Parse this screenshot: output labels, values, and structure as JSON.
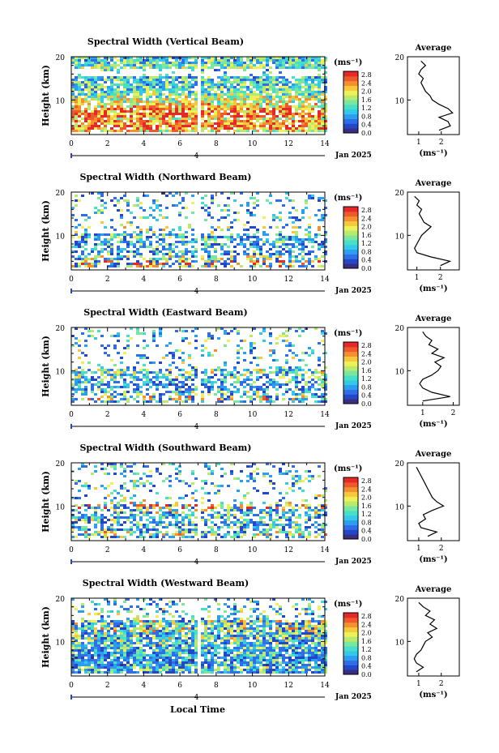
{
  "colors": {
    "scale": [
      "#3a2e80",
      "#2446c8",
      "#2f6ee6",
      "#2c9ef0",
      "#35c8e8",
      "#46e0c8",
      "#7ae6a0",
      "#b8ea6e",
      "#eef05a",
      "#f8c83c",
      "#f49030",
      "#ee5a2c",
      "#e62828"
    ],
    "text": "#000000",
    "axis": "#000000",
    "background": "#ffffff"
  },
  "xlabel": "Local Time",
  "date_label": "Jan 2025",
  "marker_label": "4",
  "colorbar_unit": "(ms⁻¹)",
  "colorbar_ticks": [
    "2.8",
    "2.4",
    "2.0",
    "1.6",
    "1.2",
    "0.8",
    "0.4",
    "0.0"
  ],
  "avg_title": "Average",
  "avg_xlabel": "(ms⁻¹)",
  "chart_data": [
    {
      "type": "heatmap",
      "title": "Spectral Width (Vertical Beam)",
      "ylabel": "Height (km)",
      "x_ticks": [
        "0",
        "2",
        "4",
        "6",
        "8",
        "10",
        "12",
        "14"
      ],
      "y_ticks": [
        "20",
        "10"
      ],
      "xlim": [
        0,
        14
      ],
      "ylim": [
        2,
        20
      ],
      "colorbar": {
        "min": 0.0,
        "max": 2.8
      },
      "profile": {
        "xlim": [
          0.5,
          2.8
        ],
        "x_ticks": [
          "1",
          "2"
        ],
        "height": [
          3,
          4,
          5,
          6,
          7,
          8,
          9,
          10,
          11,
          12,
          13,
          14,
          15,
          16,
          17,
          18,
          19
        ],
        "width": [
          1.9,
          2.4,
          2.3,
          1.9,
          2.5,
          2.3,
          1.9,
          1.6,
          1.5,
          1.3,
          1.2,
          1.1,
          1.2,
          1.0,
          1.1,
          1.3,
          1.1
        ]
      }
    },
    {
      "type": "heatmap",
      "title": "Spectral Width (Northward Beam)",
      "ylabel": "Height (km)",
      "x_ticks": [
        "0",
        "2",
        "4",
        "6",
        "8",
        "10",
        "12",
        "14"
      ],
      "y_ticks": [
        "20",
        "10"
      ],
      "xlim": [
        0,
        14
      ],
      "ylim": [
        2,
        20
      ],
      "colorbar": {
        "min": 0.0,
        "max": 2.8
      },
      "profile": {
        "xlim": [
          0.6,
          2.8
        ],
        "x_ticks": [
          "1",
          "2"
        ],
        "height": [
          3,
          4,
          5,
          6,
          7,
          8,
          9,
          10,
          11,
          12,
          13,
          14,
          15,
          16,
          17,
          18,
          19
        ],
        "width": [
          2.0,
          2.4,
          1.6,
          1.0,
          0.9,
          1.0,
          1.1,
          1.2,
          1.4,
          1.6,
          1.3,
          1.2,
          1.1,
          1.2,
          1.0,
          1.1,
          0.9
        ]
      }
    },
    {
      "type": "heatmap",
      "title": "Spectral Width (Eastward Beam)",
      "ylabel": "Height (km)",
      "x_ticks": [
        "0",
        "2",
        "4",
        "6",
        "8",
        "10",
        "12",
        "14"
      ],
      "y_ticks": [
        "20",
        "10"
      ],
      "xlim": [
        0,
        14
      ],
      "ylim": [
        2,
        20
      ],
      "colorbar": {
        "min": 0.0,
        "max": 2.8
      },
      "profile": {
        "xlim": [
          0.5,
          2.2
        ],
        "x_ticks": [
          "1",
          "2"
        ],
        "height": [
          3,
          4,
          5,
          6,
          7,
          8,
          9,
          10,
          11,
          12,
          13,
          14,
          15,
          16,
          17,
          18,
          19
        ],
        "width": [
          1.0,
          1.9,
          1.3,
          1.0,
          0.9,
          1.0,
          1.3,
          1.5,
          1.6,
          1.4,
          1.7,
          1.3,
          1.5,
          1.2,
          1.3,
          1.1,
          1.0
        ]
      }
    },
    {
      "type": "heatmap",
      "title": "Spectral Width (Southward Beam)",
      "ylabel": "Height (km)",
      "x_ticks": [
        "0",
        "2",
        "4",
        "6",
        "8",
        "10",
        "12",
        "14"
      ],
      "y_ticks": [
        "20",
        "10"
      ],
      "xlim": [
        0,
        14
      ],
      "ylim": [
        2,
        20
      ],
      "colorbar": {
        "min": 0.0,
        "max": 2.8
      },
      "profile": {
        "xlim": [
          0.5,
          2.8
        ],
        "x_ticks": [
          "1",
          "2"
        ],
        "height": [
          3,
          4,
          5,
          6,
          7,
          8,
          9,
          10,
          11,
          12,
          13,
          14,
          15,
          16,
          17,
          18,
          19
        ],
        "width": [
          1.4,
          1.8,
          1.1,
          1.0,
          1.3,
          1.2,
          1.6,
          2.1,
          1.8,
          1.6,
          1.5,
          1.4,
          1.3,
          1.2,
          1.1,
          1.0,
          0.9
        ]
      }
    },
    {
      "type": "heatmap",
      "title": "Spectral Width (Westward Beam)",
      "ylabel": "Height (km)",
      "x_ticks": [
        "0",
        "2",
        "4",
        "6",
        "8",
        "10",
        "12",
        "14"
      ],
      "y_ticks": [
        "20",
        "10"
      ],
      "xlim": [
        0,
        14
      ],
      "ylim": [
        2,
        20
      ],
      "colorbar": {
        "min": 0.0,
        "max": 2.8
      },
      "profile": {
        "xlim": [
          0.5,
          2.8
        ],
        "x_ticks": [
          "1",
          "2"
        ],
        "height": [
          3,
          4,
          5,
          6,
          7,
          8,
          9,
          10,
          11,
          12,
          13,
          14,
          15,
          16,
          17,
          18,
          19
        ],
        "width": [
          0.9,
          1.2,
          0.9,
          0.8,
          0.9,
          1.1,
          1.2,
          1.3,
          1.6,
          1.4,
          1.8,
          1.5,
          1.7,
          1.3,
          1.5,
          1.2,
          1.0
        ]
      }
    }
  ]
}
